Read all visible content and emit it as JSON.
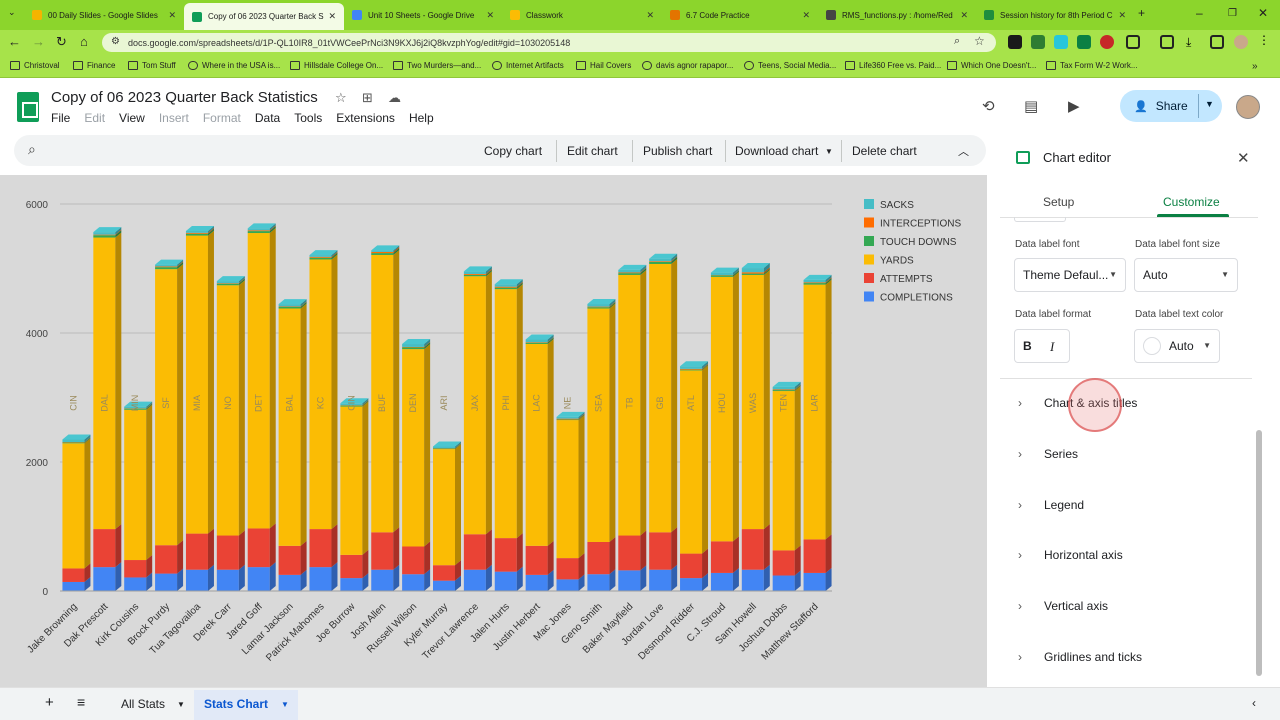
{
  "browser": {
    "tabs": [
      {
        "label": "00 Daily Slides - Google Slides",
        "color": "#f4b400"
      },
      {
        "label": "Copy of 06 2023 Quarter Back S",
        "color": "#0f9d58"
      },
      {
        "label": "Unit 10 Sheets - Google Drive",
        "color": "#4285f4"
      },
      {
        "label": "Classwork",
        "color": "#fbbc04"
      },
      {
        "label": "6.7 Code Practice",
        "color": "#e37400"
      },
      {
        "label": "RMS_functions.py : /home/Red",
        "color": "#444444"
      },
      {
        "label": "Session history for 8th Period C",
        "color": "#1e8e3e"
      }
    ],
    "url": "docs.google.com/spreadsheets/d/1P-QL10IR8_01tVWCeePrNci3N9KXJ6j2iQ8kvzphYog/edit#gid=1030205148",
    "bookmarks": [
      "Christoval",
      "Finance",
      "Tom Stuff",
      "Where in the USA is...",
      "Hillsdale College On...",
      "Two Murders—and...",
      "Internet Artifacts",
      "Hail Covers",
      "davis agnor rapapor...",
      "Teens, Social Media...",
      "Life360 Free vs. Paid...",
      "Which One Doesn't...",
      "Tax Form W-2 Work..."
    ]
  },
  "doc": {
    "title": "Copy of 06 2023 Quarter Back Statistics",
    "menu": [
      "File",
      "Edit",
      "View",
      "Insert",
      "Format",
      "Data",
      "Tools",
      "Extensions",
      "Help"
    ],
    "share_label": "Share"
  },
  "chart_toolbar": {
    "copy": "Copy chart",
    "edit": "Edit chart",
    "publish": "Publish chart",
    "download": "Download chart",
    "delete": "Delete chart"
  },
  "chart_data": {
    "type": "bar",
    "stacked": true,
    "categories": [
      "Jake Browning",
      "Dak Prescott",
      "Kirk Cousins",
      "Brock Purdy",
      "Tua Tagovailoa",
      "Derek Carr",
      "Jared Goff",
      "Lamar Jackson",
      "Patrick Mahomes",
      "Joe Burrow",
      "Josh Allen",
      "Russell Wilson",
      "Kyler Murray",
      "Trevor Lawrence",
      "Jalen Hurts",
      "Justin Herbert",
      "Mac Jones",
      "Geno Smith",
      "Baker Mayfield",
      "Jordan Love",
      "Desmond Ridder",
      "C.J. Stroud",
      "Sam Howell",
      "Joshua Dobbs",
      "Matthew Stafford"
    ],
    "teams": [
      "CIN",
      "DAL",
      "MIN",
      "SF",
      "MIA",
      "NO",
      "DET",
      "BAL",
      "KC",
      "CIN",
      "BUF",
      "DEN",
      "ARI",
      "JAX",
      "PHI",
      "LAC",
      "NE",
      "SEA",
      "TB",
      "GB",
      "ATL",
      "HOU",
      "WAS",
      "TEN",
      "LAR"
    ],
    "series": [
      {
        "name": "COMPLETIONS",
        "color": "#4285f4",
        "values": [
          140,
          370,
          210,
          270,
          330,
          330,
          370,
          250,
          370,
          200,
          330,
          260,
          160,
          330,
          300,
          250,
          180,
          260,
          320,
          330,
          200,
          280,
          330,
          240,
          280
        ]
      },
      {
        "name": "ATTEMPTS",
        "color": "#ea4335",
        "values": [
          210,
          590,
          270,
          440,
          560,
          530,
          600,
          450,
          590,
          360,
          580,
          430,
          240,
          550,
          520,
          450,
          330,
          500,
          540,
          580,
          380,
          490,
          630,
          390,
          520
        ]
      },
      {
        "name": "YARDS",
        "color": "#fbbc04",
        "values": [
          1940,
          4520,
          2330,
          4280,
          4620,
          3880,
          4580,
          3680,
          4180,
          2300,
          4300,
          3060,
          1800,
          4000,
          3860,
          3130,
          2140,
          3620,
          4040,
          4160,
          2840,
          4100,
          3940,
          2470,
          3950
        ]
      },
      {
        "name": "TOUCH DOWNS",
        "color": "#34a853",
        "values": [
          12,
          36,
          18,
          31,
          29,
          25,
          30,
          24,
          27,
          15,
          29,
          26,
          10,
          21,
          23,
          20,
          10,
          20,
          28,
          32,
          12,
          23,
          21,
          15,
          24
        ]
      },
      {
        "name": "INTERCEPTIONS",
        "color": "#ff6d01",
        "values": [
          7,
          9,
          5,
          11,
          14,
          8,
          12,
          7,
          14,
          6,
          18,
          8,
          5,
          14,
          15,
          8,
          12,
          9,
          10,
          11,
          12,
          5,
          21,
          10,
          11
        ]
      },
      {
        "name": "SACKS",
        "color": "#46bdc6",
        "values": [
          40,
          39,
          25,
          28,
          29,
          32,
          30,
          37,
          27,
          29,
          24,
          45,
          25,
          40,
          38,
          41,
          27,
          40,
          40,
          39,
          41,
          38,
          65,
          40,
          38
        ]
      }
    ],
    "ylim": [
      0,
      6000
    ],
    "yticks": [
      "0",
      "2000",
      "4000",
      "6000"
    ],
    "legend_position": "right",
    "grid": true
  },
  "editor": {
    "title": "Chart editor",
    "tabs": [
      "Setup",
      "Customize"
    ],
    "data_label_font_label": "Data label font",
    "data_label_font_value": "Theme Defaul...",
    "data_label_size_label": "Data label font size",
    "data_label_size_value": "Auto",
    "data_label_format_label": "Data label format",
    "bold": "B",
    "italic": "I",
    "data_label_color_label": "Data label text color",
    "data_label_color_value": "Auto",
    "sections": [
      "Chart & axis titles",
      "Series",
      "Legend",
      "Horizontal axis",
      "Vertical axis",
      "Gridlines and ticks"
    ]
  },
  "sheets": {
    "tabs": [
      "All Stats",
      "Stats Chart"
    ]
  }
}
